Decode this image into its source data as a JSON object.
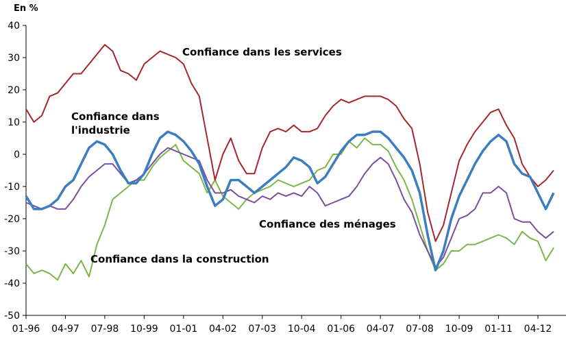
{
  "chart_data": {
    "type": "line",
    "y_label": "En %",
    "categories": [
      "01-96",
      null,
      null,
      null,
      null,
      "04-97",
      null,
      null,
      null,
      null,
      "07-98",
      null,
      null,
      null,
      null,
      "10-99",
      null,
      null,
      null,
      null,
      "01-01",
      null,
      null,
      null,
      null,
      "04-02",
      null,
      null,
      null,
      null,
      "07-03",
      null,
      null,
      null,
      null,
      "10-04",
      null,
      null,
      null,
      null,
      "01-06",
      null,
      null,
      null,
      null,
      "04-07",
      null,
      null,
      null,
      null,
      "07-08",
      null,
      null,
      null,
      null,
      "10-09",
      null,
      null,
      null,
      null,
      "01-11",
      null,
      null,
      null,
      null,
      "04-12",
      null,
      null
    ],
    "series": [
      {
        "name": "Confiance dans les services",
        "color": "#a3262a",
        "values": [
          14,
          10,
          12,
          18,
          19,
          22,
          25,
          25,
          28,
          31,
          34,
          32,
          26,
          25,
          23,
          28,
          30,
          32,
          31,
          30,
          28,
          22,
          18,
          5,
          -8,
          0,
          5,
          -2,
          -6,
          -6,
          2,
          7,
          8,
          7,
          9,
          7,
          7,
          8,
          12,
          15,
          17,
          16,
          17,
          18,
          18,
          18,
          17,
          15,
          11,
          8,
          -3,
          -18,
          -27,
          -22,
          -12,
          -2,
          3,
          7,
          10,
          13,
          14,
          9,
          5,
          -3,
          -7,
          -10,
          -8,
          -5
        ]
      },
      {
        "name": "Confiance dans l'industrie",
        "color": "#3a7dc0",
        "values": [
          -13,
          -17,
          -17,
          -16,
          -14,
          -10,
          -8,
          -3,
          2,
          4,
          3,
          0,
          -5,
          -9,
          -9,
          -6,
          0,
          5,
          7,
          6,
          4,
          1,
          -3,
          -10,
          -16,
          -14,
          -8,
          -8,
          -10,
          -12,
          -10,
          -8,
          -6,
          -4,
          -1,
          -2,
          -4,
          -9,
          -7,
          -3,
          1,
          4,
          6,
          6,
          7,
          7,
          5,
          2,
          -1,
          -5,
          -12,
          -25,
          -36,
          -30,
          -20,
          -13,
          -8,
          -3,
          1,
          4,
          6,
          4,
          -3,
          -6,
          -7,
          -12,
          -17,
          -12
        ]
      },
      {
        "name": "Confiance des ménages",
        "color": "#7b4d9e",
        "values": [
          -15,
          -16,
          -17,
          -16,
          -17,
          -17,
          -14,
          -10,
          -7,
          -5,
          -3,
          -3,
          -6,
          -9,
          -8,
          -6,
          -3,
          0,
          2,
          1,
          0,
          -1,
          -2,
          -8,
          -12,
          -12,
          -11,
          -13,
          -14,
          -15,
          -13,
          -14,
          -12,
          -13,
          -12,
          -13,
          -10,
          -12,
          -16,
          -15,
          -14,
          -13,
          -10,
          -6,
          -3,
          -1,
          -3,
          -8,
          -14,
          -18,
          -25,
          -30,
          -35,
          -32,
          -26,
          -20,
          -19,
          -17,
          -12,
          -12,
          -10,
          -12,
          -20,
          -21,
          -21,
          -24,
          -26,
          -24
        ]
      },
      {
        "name": "Confiance dans la construction",
        "color": "#7ab648",
        "values": [
          -34,
          -37,
          -36,
          -37,
          -39,
          -34,
          -37,
          -33,
          -38,
          -28,
          -22,
          -14,
          -12,
          -10,
          -8,
          -8,
          -4,
          -1,
          1,
          3,
          -2,
          -4,
          -6,
          -12,
          -8,
          -13,
          -15,
          -17,
          -14,
          -12,
          -11,
          -10,
          -8,
          -9,
          -10,
          -9,
          -8,
          -5,
          -4,
          0,
          0,
          4,
          2,
          5,
          3,
          3,
          1,
          -4,
          -8,
          -14,
          -22,
          -30,
          -36,
          -34,
          -30,
          -30,
          -28,
          -28,
          -27,
          -26,
          -25,
          -26,
          -28,
          -24,
          -26,
          -27,
          -33,
          -29
        ]
      }
    ],
    "ylim": [
      -50,
      40
    ],
    "yticks": [
      -50,
      -40,
      -30,
      -20,
      -10,
      0,
      10,
      20,
      30,
      40
    ]
  }
}
